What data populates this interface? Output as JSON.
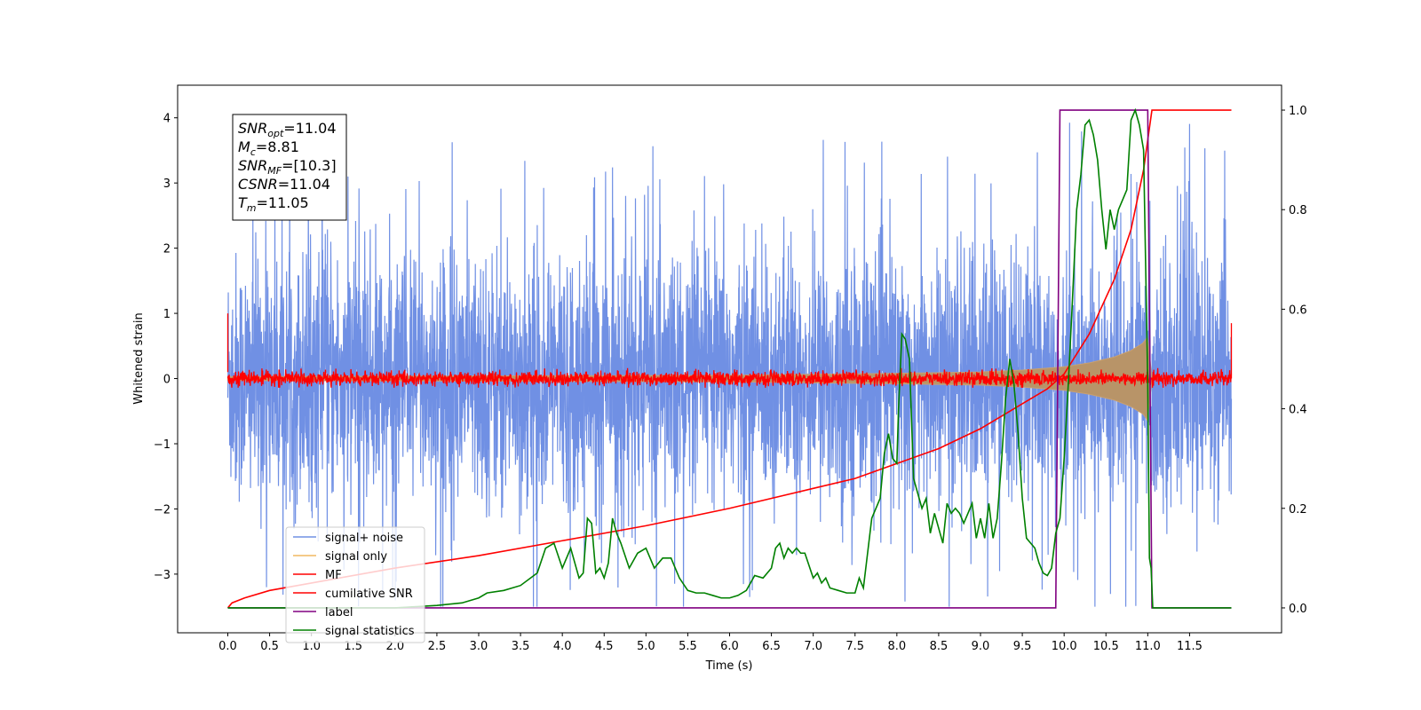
{
  "chart_data": {
    "type": "line",
    "xlabel": "Time (s)",
    "ylabel": "Whitened strain",
    "xlim": [
      -0.6,
      12.6
    ],
    "ylim": [
      -3.9,
      4.5
    ],
    "y2lim": [
      -0.05,
      1.05
    ],
    "x_ticks": [
      "0.0",
      "0.5",
      "1.0",
      "1.5",
      "2.0",
      "2.5",
      "3.0",
      "3.5",
      "4.0",
      "4.5",
      "5.0",
      "5.5",
      "6.0",
      "6.5",
      "7.0",
      "7.5",
      "8.0",
      "8.5",
      "9.0",
      "9.5",
      "10.0",
      "10.5",
      "11.0",
      "11.5"
    ],
    "y_ticks": [
      "4",
      "3",
      "2",
      "1",
      "0",
      "−1",
      "−2",
      "−3"
    ],
    "y2_ticks": [
      "1.0",
      "0.8",
      "0.6",
      "0.4",
      "0.2",
      "0.0"
    ],
    "legend_position": "lower-left",
    "annotation": {
      "lines": [
        {
          "sym": "SNR",
          "sub": "opt",
          "val": "=11.04"
        },
        {
          "sym": "M",
          "sub": "c",
          "val": "=8.81"
        },
        {
          "sym": "SNR",
          "sub": "MF",
          "val": "=[10.3]"
        },
        {
          "sym": "CSNR",
          "sub": "",
          "val": "=11.04"
        },
        {
          "sym": "T",
          "sub": "m",
          "val": "=11.05"
        }
      ]
    },
    "series": [
      {
        "name": "signal+ noise",
        "color": "#7090e4",
        "axis": "left",
        "note": "whitened noise, envelope roughly ±3.0 with spikes to 4.1",
        "x_range": [
          0.0,
          12.0
        ]
      },
      {
        "name": "signal only",
        "color": "#f0b860",
        "axis": "left",
        "note": "chirp, amplitude ~0.05 growing to ~0.65 near 11.0 s",
        "envelope_x": [
          0,
          6,
          8,
          9,
          9.5,
          10,
          10.3,
          10.6,
          10.8,
          10.95,
          11.0,
          11.05
        ],
        "envelope_y": [
          0.03,
          0.05,
          0.08,
          0.1,
          0.13,
          0.18,
          0.24,
          0.33,
          0.43,
          0.55,
          0.65,
          0
        ]
      },
      {
        "name": "MF",
        "color": "#ff0000",
        "axis": "left",
        "note": "matched filter output around 0, amplitude ~0.1",
        "x_range": [
          0.0,
          12.0
        ]
      },
      {
        "name": "cumilative SNR",
        "color": "#ff0000",
        "axis": "right",
        "x": [
          0.0,
          0.05,
          0.2,
          0.5,
          1,
          2,
          3,
          4,
          5,
          6,
          7,
          7.5,
          8,
          8.5,
          9,
          9.5,
          9.8,
          10.0,
          10.3,
          10.6,
          10.8,
          10.95,
          11.05,
          11.2,
          12.0
        ],
        "y": [
          0.0,
          0.01,
          0.02,
          0.035,
          0.05,
          0.08,
          0.105,
          0.135,
          0.165,
          0.2,
          0.24,
          0.26,
          0.29,
          0.32,
          0.36,
          0.41,
          0.44,
          0.47,
          0.55,
          0.66,
          0.76,
          0.88,
          1.0,
          1.0,
          1.0
        ]
      },
      {
        "name": "label",
        "color": "#800080",
        "axis": "right",
        "x": [
          0.0,
          9.9,
          9.95,
          11.0,
          11.05,
          12.0
        ],
        "y": [
          0.0,
          0.0,
          1.0,
          1.0,
          0.0,
          0.0
        ]
      },
      {
        "name": "signal statistics",
        "color": "#008000",
        "axis": "right",
        "x": [
          0.0,
          0.5,
          1.0,
          1.5,
          2.0,
          2.5,
          2.8,
          3.0,
          3.1,
          3.3,
          3.5,
          3.7,
          3.8,
          3.9,
          4.0,
          4.1,
          4.2,
          4.25,
          4.3,
          4.35,
          4.4,
          4.45,
          4.5,
          4.55,
          4.6,
          4.65,
          4.7,
          4.8,
          4.9,
          5.0,
          5.1,
          5.2,
          5.3,
          5.4,
          5.5,
          5.6,
          5.7,
          5.8,
          5.9,
          6.0,
          6.1,
          6.2,
          6.3,
          6.4,
          6.5,
          6.55,
          6.6,
          6.65,
          6.7,
          6.75,
          6.8,
          6.85,
          6.9,
          7.0,
          7.05,
          7.1,
          7.15,
          7.2,
          7.3,
          7.4,
          7.5,
          7.55,
          7.6,
          7.7,
          7.8,
          7.85,
          7.9,
          7.95,
          8.0,
          8.02,
          8.06,
          8.1,
          8.15,
          8.2,
          8.3,
          8.35,
          8.4,
          8.45,
          8.5,
          8.55,
          8.6,
          8.65,
          8.7,
          8.75,
          8.8,
          8.85,
          8.9,
          8.95,
          9.0,
          9.05,
          9.1,
          9.15,
          9.2,
          9.25,
          9.3,
          9.35,
          9.4,
          9.45,
          9.5,
          9.55,
          9.6,
          9.65,
          9.7,
          9.75,
          9.8,
          9.85,
          9.9,
          9.95,
          10.0,
          10.05,
          10.1,
          10.15,
          10.2,
          10.25,
          10.3,
          10.35,
          10.4,
          10.45,
          10.5,
          10.55,
          10.6,
          10.65,
          10.7,
          10.75,
          10.8,
          10.85,
          10.9,
          10.95,
          11.0,
          11.02,
          11.04,
          11.06,
          11.1,
          11.2,
          11.5,
          12.0
        ],
        "y": [
          0.0,
          0.0,
          0.0,
          0.0,
          0.0,
          0.005,
          0.01,
          0.02,
          0.03,
          0.035,
          0.045,
          0.07,
          0.12,
          0.13,
          0.08,
          0.12,
          0.06,
          0.07,
          0.18,
          0.17,
          0.07,
          0.08,
          0.06,
          0.09,
          0.18,
          0.15,
          0.13,
          0.08,
          0.11,
          0.12,
          0.08,
          0.1,
          0.1,
          0.06,
          0.035,
          0.03,
          0.03,
          0.025,
          0.02,
          0.02,
          0.025,
          0.035,
          0.065,
          0.06,
          0.08,
          0.12,
          0.13,
          0.1,
          0.12,
          0.11,
          0.12,
          0.11,
          0.11,
          0.06,
          0.07,
          0.05,
          0.06,
          0.04,
          0.035,
          0.03,
          0.03,
          0.06,
          0.04,
          0.18,
          0.22,
          0.31,
          0.35,
          0.3,
          0.29,
          0.4,
          0.55,
          0.54,
          0.5,
          0.26,
          0.2,
          0.22,
          0.15,
          0.19,
          0.16,
          0.13,
          0.21,
          0.19,
          0.2,
          0.19,
          0.17,
          0.19,
          0.21,
          0.14,
          0.18,
          0.14,
          0.21,
          0.14,
          0.18,
          0.29,
          0.42,
          0.5,
          0.45,
          0.35,
          0.22,
          0.14,
          0.13,
          0.12,
          0.09,
          0.07,
          0.065,
          0.08,
          0.15,
          0.18,
          0.3,
          0.45,
          0.62,
          0.8,
          0.87,
          0.97,
          0.98,
          0.95,
          0.9,
          0.8,
          0.72,
          0.8,
          0.76,
          0.8,
          0.82,
          0.84,
          0.98,
          1.0,
          0.97,
          0.92,
          0.45,
          0.1,
          0.08,
          0.0,
          0.0,
          0.0,
          0.0,
          0.0
        ]
      }
    ]
  }
}
